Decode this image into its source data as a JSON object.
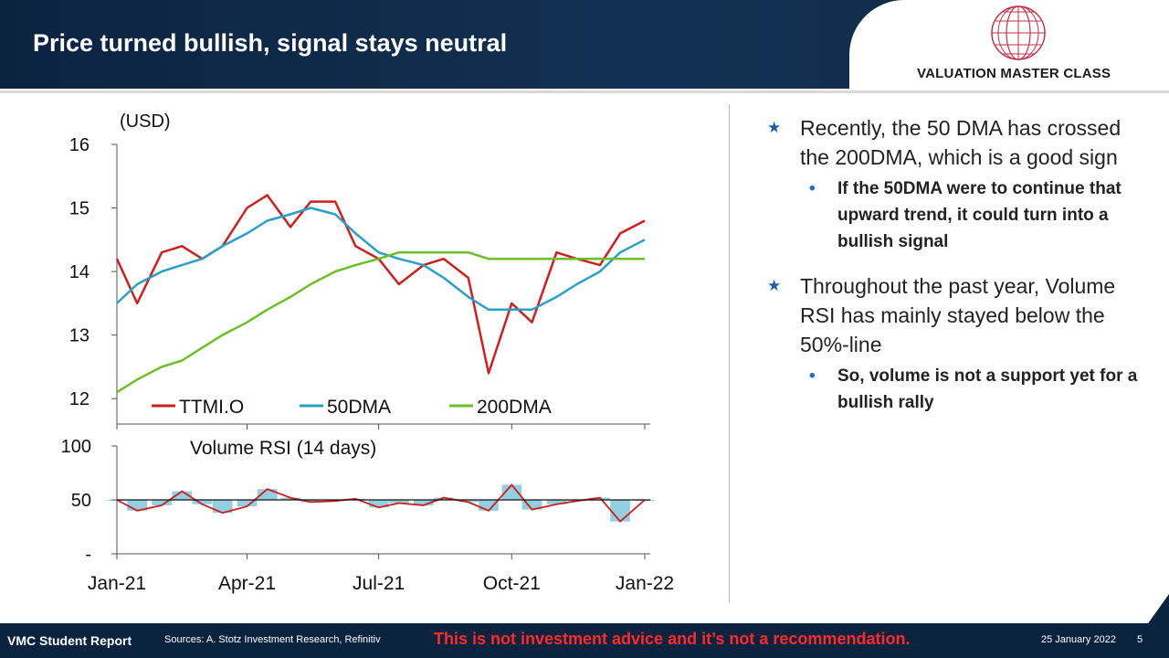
{
  "header": {
    "title": "Price turned bullish, signal stays neutral",
    "logo_text": "VALUATION MASTER CLASS"
  },
  "bullets": [
    {
      "text": "Recently, the 50 DMA has crossed the 200DMA, which is a good sign",
      "sub": "If the 50DMA were to continue that upward trend, it could turn into a bullish signal"
    },
    {
      "text": "Throughout the past year, Volume RSI has mainly stayed below the 50%-line",
      "sub": "So, volume is not a support yet for a bullish rally"
    }
  ],
  "footer": {
    "left": "VMC Student Report",
    "sources": "Sources: A. Stotz Investment Research, Refinitiv",
    "disclaimer": "This is not investment advice and it’s not a recommendation.",
    "date": "25 January 2022",
    "page": "5"
  },
  "colors": {
    "ttmi": "#cc1f1f",
    "dma50": "#2aa0c8",
    "dma200": "#6cbf2a",
    "rsi": "#3aa6c8",
    "brand": "#0c2340",
    "accent": "#1f5fa8"
  },
  "chart_data": [
    {
      "type": "line",
      "ylabel": "(USD)",
      "ylim": [
        11.6,
        16
      ],
      "yticks": [
        "16",
        "15",
        "14",
        "13",
        "12"
      ],
      "x_ticks": [
        "Jan-21",
        "Apr-21",
        "Jul-21",
        "Oct-21",
        "Jan-22"
      ],
      "legend": [
        "TTMI.O",
        "50DMA",
        "200DMA"
      ],
      "legend_position": "bottom",
      "x": [
        "2021-01-01",
        "2021-01-15",
        "2021-02-01",
        "2021-02-15",
        "2021-03-01",
        "2021-03-15",
        "2021-04-01",
        "2021-04-15",
        "2021-05-01",
        "2021-05-15",
        "2021-06-01",
        "2021-06-15",
        "2021-07-01",
        "2021-07-15",
        "2021-08-01",
        "2021-08-15",
        "2021-09-01",
        "2021-09-15",
        "2021-10-01",
        "2021-10-15",
        "2021-11-01",
        "2021-11-15",
        "2021-12-01",
        "2021-12-15",
        "2022-01-01"
      ],
      "series": [
        {
          "name": "TTMI.O",
          "values": [
            14.2,
            13.5,
            14.3,
            14.4,
            14.2,
            14.4,
            15.0,
            15.2,
            14.7,
            15.1,
            15.1,
            14.4,
            14.2,
            13.8,
            14.1,
            14.2,
            13.9,
            12.4,
            13.5,
            13.2,
            14.3,
            14.2,
            14.1,
            14.6,
            14.8
          ]
        },
        {
          "name": "50DMA",
          "values": [
            13.5,
            13.8,
            14.0,
            14.1,
            14.2,
            14.4,
            14.6,
            14.8,
            14.9,
            15.0,
            14.9,
            14.6,
            14.3,
            14.2,
            14.1,
            13.9,
            13.6,
            13.4,
            13.4,
            13.4,
            13.6,
            13.8,
            14.0,
            14.3,
            14.5
          ]
        },
        {
          "name": "200DMA",
          "values": [
            12.1,
            12.3,
            12.5,
            12.6,
            12.8,
            13.0,
            13.2,
            13.4,
            13.6,
            13.8,
            14.0,
            14.1,
            14.2,
            14.3,
            14.3,
            14.3,
            14.3,
            14.2,
            14.2,
            14.2,
            14.2,
            14.2,
            14.2,
            14.2,
            14.2
          ]
        }
      ]
    },
    {
      "type": "bar",
      "title": "Volume RSI (14 days)",
      "ylim": [
        0,
        100
      ],
      "yticks": [
        "100",
        "50",
        "-"
      ],
      "x_ticks": [
        "Jan-21",
        "Apr-21",
        "Jul-21",
        "Oct-21",
        "Jan-22"
      ],
      "x": [
        "2021-01-01",
        "2021-01-15",
        "2021-02-01",
        "2021-02-15",
        "2021-03-01",
        "2021-03-15",
        "2021-04-01",
        "2021-04-15",
        "2021-05-01",
        "2021-05-15",
        "2021-06-01",
        "2021-06-15",
        "2021-07-01",
        "2021-07-15",
        "2021-08-01",
        "2021-08-15",
        "2021-09-01",
        "2021-09-15",
        "2021-10-01",
        "2021-10-15",
        "2021-11-01",
        "2021-11-15",
        "2021-12-01",
        "2021-12-15",
        "2022-01-01"
      ],
      "values": [
        50,
        40,
        45,
        58,
        46,
        38,
        44,
        60,
        52,
        48,
        49,
        51,
        43,
        47,
        45,
        52,
        48,
        40,
        64,
        41,
        46,
        49,
        52,
        30,
        50
      ]
    }
  ]
}
